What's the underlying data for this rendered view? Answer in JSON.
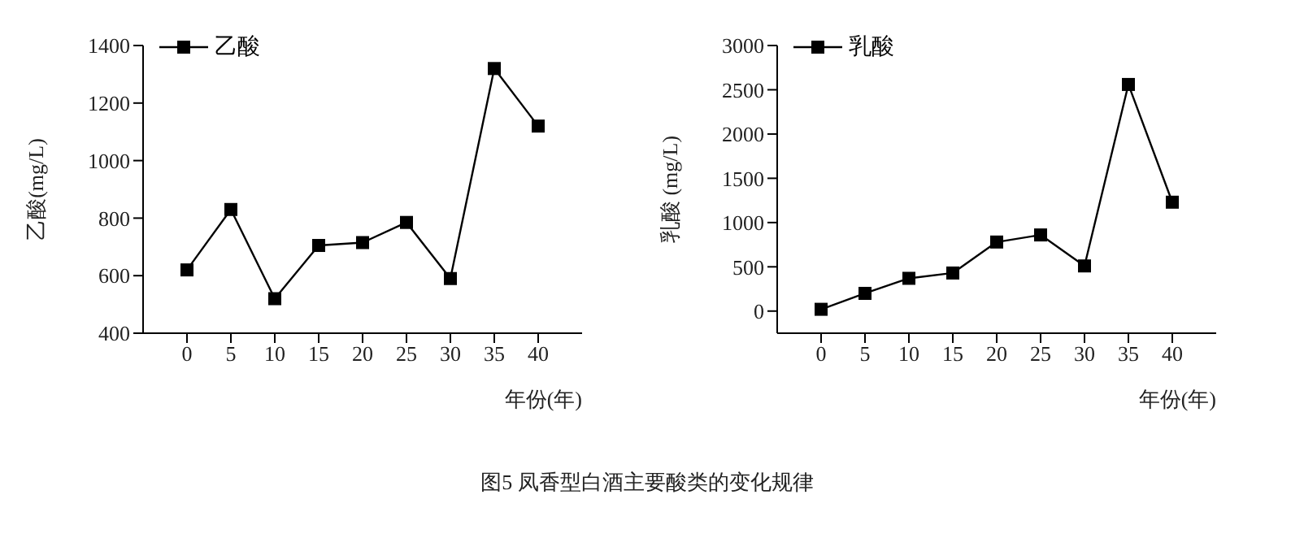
{
  "chart_data": [
    {
      "type": "line",
      "xlabel": "年份(年)",
      "ylabel": "乙酸(mg/L)",
      "x": [
        0,
        5,
        10,
        15,
        20,
        25,
        30,
        35,
        40
      ],
      "series": [
        {
          "name": "乙酸",
          "color": "#000000",
          "values": [
            620,
            830,
            520,
            705,
            715,
            785,
            590,
            1320,
            1120
          ]
        }
      ],
      "xlim": [
        -5,
        45
      ],
      "xticks": [
        0,
        5,
        10,
        15,
        20,
        25,
        30,
        35,
        40
      ],
      "ylim": [
        400,
        1400
      ],
      "yticks": [
        400,
        600,
        800,
        1000,
        1200,
        1400
      ],
      "grid": false,
      "legend": "top left",
      "marker": "square",
      "line_style": "solid",
      "annotations": [
        "图5  凤香型白酒主要酸类的变化规律"
      ]
    },
    {
      "type": "line",
      "xlabel": "年份(年)",
      "ylabel": "乳酸 (mg/L)",
      "x": [
        0,
        5,
        10,
        15,
        20,
        25,
        30,
        35,
        40
      ],
      "series": [
        {
          "name": "乳酸",
          "color": "#000000",
          "values": [
            20,
            200,
            370,
            430,
            780,
            860,
            510,
            2560,
            1230
          ]
        }
      ],
      "xlim": [
        -5,
        45
      ],
      "xticks": [
        0,
        5,
        10,
        15,
        20,
        25,
        30,
        35,
        40
      ],
      "ylim": [
        -250,
        3000
      ],
      "yticks": [
        0,
        500,
        1000,
        1500,
        2000,
        2500,
        3000
      ],
      "grid": false,
      "legend": "top left",
      "marker": "square",
      "line_style": "solid"
    }
  ]
}
